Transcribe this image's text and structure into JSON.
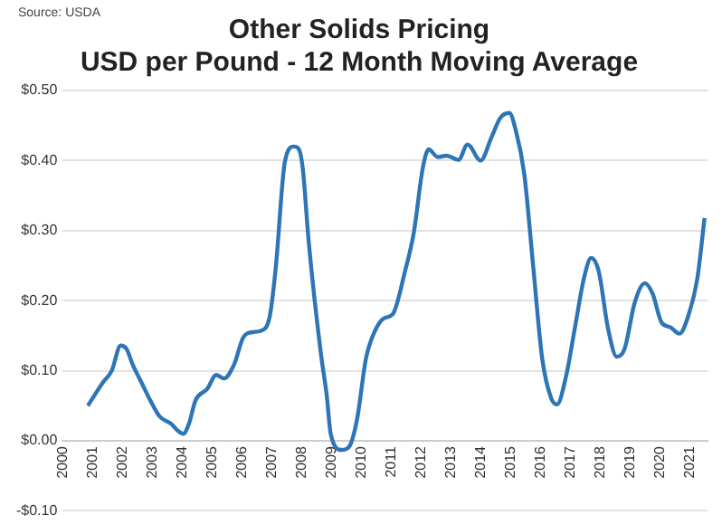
{
  "chart_data": {
    "type": "line",
    "title": "Other Solids Pricing",
    "subtitle": "USD per Pound - 12 Month Moving Average",
    "annotations": [
      "Source: USDA"
    ],
    "x": [
      2000.84,
      2001.34,
      2001.64,
      2001.94,
      2002.14,
      2002.34,
      2002.64,
      2002.94,
      2003.24,
      2003.64,
      2003.84,
      2004.04,
      2004.24,
      2004.44,
      2004.84,
      2005.14,
      2005.4,
      2005.74,
      2006.04,
      2006.34,
      2006.64,
      2006.94,
      2007.14,
      2007.44,
      2007.74,
      2007.9,
      2008.04,
      2008.24,
      2008.64,
      2008.84,
      2008.98,
      2009.34,
      2009.6,
      2009.86,
      2010.16,
      2010.46,
      2010.76,
      2011.06,
      2011.46,
      2011.76,
      2012.06,
      2012.26,
      2012.56,
      2012.86,
      2013.26,
      2013.56,
      2014.0,
      2014.36,
      2014.66,
      2014.96,
      2015.16,
      2015.46,
      2015.76,
      2016.06,
      2016.36,
      2016.56,
      2016.86,
      2017.16,
      2017.46,
      2017.7,
      2017.96,
      2018.26,
      2018.56,
      2018.82,
      2019.16,
      2019.5,
      2019.76,
      2020.06,
      2020.36,
      2020.66,
      2020.96,
      2021.26,
      2021.5
    ],
    "series": [
      {
        "color": "#2e75b6",
        "values": [
          0.05,
          0.083,
          0.1,
          0.136,
          0.131,
          0.109,
          0.083,
          0.057,
          0.035,
          0.024,
          0.015,
          0.01,
          0.026,
          0.057,
          0.074,
          0.094,
          0.089,
          0.109,
          0.147,
          0.155,
          0.157,
          0.179,
          0.249,
          0.398,
          0.42,
          0.417,
          0.389,
          0.284,
          0.127,
          0.066,
          0.009,
          -0.013,
          -0.008,
          0.031,
          0.118,
          0.157,
          0.175,
          0.181,
          0.241,
          0.297,
          0.389,
          0.416,
          0.405,
          0.407,
          0.401,
          0.423,
          0.4,
          0.433,
          0.461,
          0.468,
          0.446,
          0.381,
          0.249,
          0.118,
          0.061,
          0.052,
          0.092,
          0.162,
          0.232,
          0.261,
          0.241,
          0.162,
          0.12,
          0.131,
          0.197,
          0.225,
          0.21,
          0.169,
          0.162,
          0.153,
          0.179,
          0.232,
          0.318
        ]
      }
    ],
    "xlim": [
      2000,
      2021.6
    ],
    "xticks": [
      2000,
      2001,
      2002,
      2003,
      2004,
      2005,
      2006,
      2007,
      2008,
      2009,
      2010,
      2011,
      2012,
      2013,
      2014,
      2015,
      2016,
      2017,
      2018,
      2019,
      2020,
      2021
    ],
    "ylim": [
      -0.1,
      0.5
    ],
    "yticks": [
      {
        "value": -0.1,
        "label": "-$0.10"
      },
      {
        "value": 0,
        "label": "$0.00"
      },
      {
        "value": 0.1,
        "label": "$0.10"
      },
      {
        "value": 0.2,
        "label": "$0.20"
      },
      {
        "value": 0.3,
        "label": "$0.30"
      },
      {
        "value": 0.4,
        "label": "$0.40"
      },
      {
        "value": 0.5,
        "label": "$0.50"
      }
    ],
    "grid": "y",
    "legend": false,
    "marker": "none",
    "line_style": "solid"
  }
}
